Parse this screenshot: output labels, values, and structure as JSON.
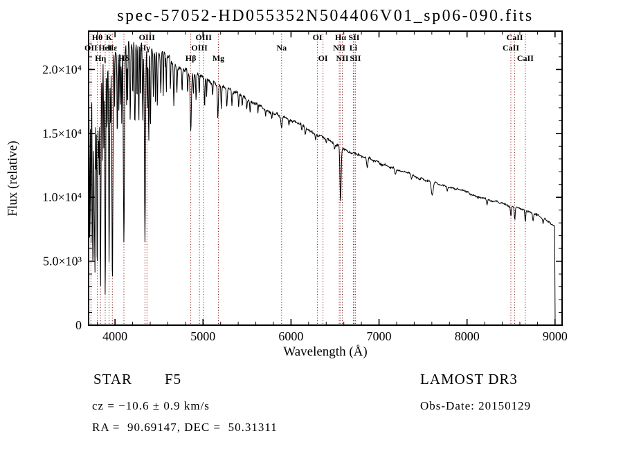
{
  "title": "spec-57052-HD055352N504406V01_sp06-090.fits",
  "axes": {
    "xlabel": "Wavelength (Å)",
    "ylabel": "Flux (relative)",
    "xticks": [
      {
        "value": 4000,
        "label": "4000"
      },
      {
        "value": 5000,
        "label": "5000"
      },
      {
        "value": 6000,
        "label": "6000"
      },
      {
        "value": 7000,
        "label": "7000"
      },
      {
        "value": 8000,
        "label": "8000"
      },
      {
        "value": 9000,
        "label": "9000"
      }
    ],
    "yticks": [
      {
        "value": 0,
        "label": "0"
      },
      {
        "value": 5000,
        "label": "5.0×10³"
      },
      {
        "value": 10000,
        "label": "1.0×10⁴"
      },
      {
        "value": 15000,
        "label": "1.5×10⁴"
      },
      {
        "value": 20000,
        "label": "2.0×10⁴"
      }
    ],
    "x_minor_step": 200,
    "y_minor_step": 1000
  },
  "chart_data": {
    "type": "line",
    "title": "spec-57052-HD055352N504406V01_sp06-090.fits",
    "xlabel": "Wavelength (Å)",
    "ylabel": "Flux (relative)",
    "xlim": [
      3700,
      9080
    ],
    "ylim": [
      0,
      23000
    ],
    "grid": false,
    "legend": "none",
    "marker_color": "#8b1a1a",
    "label_color": "#1a1212",
    "series": [
      {
        "name": "observed-spectrum",
        "color": "#000000",
        "continuum_points": [
          [
            3700,
            19500
          ],
          [
            3760,
            20200
          ],
          [
            3820,
            20500
          ],
          [
            3880,
            20800
          ],
          [
            3940,
            21000
          ],
          [
            4000,
            21300
          ],
          [
            4080,
            21600
          ],
          [
            4160,
            21900
          ],
          [
            4240,
            22000
          ],
          [
            4320,
            21800
          ],
          [
            4400,
            21500
          ],
          [
            4500,
            21200
          ],
          [
            4600,
            20900
          ],
          [
            4700,
            20400
          ],
          [
            4800,
            20000
          ],
          [
            4900,
            19700
          ],
          [
            5000,
            19400
          ],
          [
            5100,
            19000
          ],
          [
            5200,
            18700
          ],
          [
            5300,
            18400
          ],
          [
            5400,
            18100
          ],
          [
            5500,
            17700
          ],
          [
            5600,
            17300
          ],
          [
            5700,
            16900
          ],
          [
            5800,
            16600
          ],
          [
            5900,
            16300
          ],
          [
            6000,
            16000
          ],
          [
            6100,
            15700
          ],
          [
            6200,
            15300
          ],
          [
            6300,
            14900
          ],
          [
            6400,
            14600
          ],
          [
            6500,
            14200
          ],
          [
            6600,
            13800
          ],
          [
            6700,
            13500
          ],
          [
            6800,
            13200
          ],
          [
            6900,
            13000
          ],
          [
            7000,
            12700
          ],
          [
            7100,
            12500
          ],
          [
            7200,
            12200
          ],
          [
            7300,
            12000
          ],
          [
            7400,
            11700
          ],
          [
            7500,
            11400
          ],
          [
            7600,
            11200
          ],
          [
            7700,
            11000
          ],
          [
            7800,
            10800
          ],
          [
            7900,
            10600
          ],
          [
            8000,
            10400
          ],
          [
            8100,
            10100
          ],
          [
            8200,
            9900
          ],
          [
            8300,
            9700
          ],
          [
            8400,
            9500
          ],
          [
            8500,
            9300
          ],
          [
            8600,
            9100
          ],
          [
            8700,
            8900
          ],
          [
            8800,
            8600
          ],
          [
            8900,
            8200
          ],
          [
            9000,
            7700
          ]
        ],
        "absorption_features": [
          [
            3712,
            13000,
            4
          ],
          [
            3727,
            14000,
            4
          ],
          [
            3742,
            10000,
            3
          ],
          [
            3750,
            16000,
            4
          ],
          [
            3762,
            9000,
            3
          ],
          [
            3771,
            16500,
            4
          ],
          [
            3784,
            8000,
            3
          ],
          [
            3798,
            17000,
            5
          ],
          [
            3812,
            7000,
            3
          ],
          [
            3820,
            9000,
            3
          ],
          [
            3835,
            17500,
            5
          ],
          [
            3856,
            8000,
            3
          ],
          [
            3872,
            7000,
            3
          ],
          [
            3889,
            18000,
            5
          ],
          [
            3910,
            6000,
            3
          ],
          [
            3933,
            16000,
            5
          ],
          [
            3950,
            6000,
            3
          ],
          [
            3970,
            18500,
            6
          ],
          [
            3995,
            5000,
            3
          ],
          [
            4026,
            7000,
            4
          ],
          [
            4045,
            5500,
            3
          ],
          [
            4063,
            4500,
            3
          ],
          [
            4077,
            6000,
            3
          ],
          [
            4101,
            15500,
            6
          ],
          [
            4132,
            5000,
            3
          ],
          [
            4144,
            4500,
            3
          ],
          [
            4173,
            6000,
            4
          ],
          [
            4202,
            4500,
            3
          ],
          [
            4226,
            7000,
            4
          ],
          [
            4250,
            4500,
            3
          ],
          [
            4271,
            6000,
            4
          ],
          [
            4290,
            5000,
            3
          ],
          [
            4315,
            6000,
            4
          ],
          [
            4340,
            15000,
            6
          ],
          [
            4367,
            5000,
            3
          ],
          [
            4383,
            7500,
            4
          ],
          [
            4404,
            6000,
            4
          ],
          [
            4435,
            3500,
            3
          ],
          [
            4459,
            4000,
            3
          ],
          [
            4481,
            4500,
            4
          ],
          [
            4520,
            3000,
            4
          ],
          [
            4549,
            3500,
            3
          ],
          [
            4583,
            3000,
            3
          ],
          [
            4629,
            2500,
            3
          ],
          [
            4668,
            3200,
            5
          ],
          [
            4703,
            2200,
            4
          ],
          [
            4762,
            1800,
            4
          ],
          [
            4825,
            1800,
            4
          ],
          [
            4861,
            4600,
            7
          ],
          [
            4891,
            1500,
            3
          ],
          [
            4921,
            2000,
            4
          ],
          [
            4957,
            1600,
            4
          ],
          [
            5018,
            2200,
            4
          ],
          [
            5041,
            1400,
            3
          ],
          [
            5110,
            1200,
            4
          ],
          [
            5169,
            2400,
            5
          ],
          [
            5208,
            1800,
            4
          ],
          [
            5270,
            1600,
            5
          ],
          [
            5328,
            1100,
            4
          ],
          [
            5405,
            1000,
            4
          ],
          [
            5446,
            900,
            4
          ],
          [
            5497,
            700,
            4
          ],
          [
            5535,
            800,
            4
          ],
          [
            5624,
            600,
            4
          ],
          [
            5711,
            500,
            4
          ],
          [
            5782,
            500,
            4
          ],
          [
            5893,
            800,
            7
          ],
          [
            5976,
            400,
            4
          ],
          [
            6122,
            550,
            4
          ],
          [
            6162,
            500,
            4
          ],
          [
            6280,
            450,
            5
          ],
          [
            6400,
            350,
            4
          ],
          [
            6495,
            400,
            4
          ],
          [
            6563,
            4300,
            7
          ],
          [
            6867,
            800,
            7
          ],
          [
            7186,
            450,
            7
          ],
          [
            7370,
            300,
            6
          ],
          [
            7605,
            1000,
            11
          ],
          [
            7775,
            350,
            6
          ],
          [
            8227,
            450,
            6
          ],
          [
            8498,
            750,
            5
          ],
          [
            8542,
            1000,
            5
          ],
          [
            8662,
            900,
            5
          ],
          [
            8750,
            550,
            5
          ],
          [
            8865,
            450,
            5
          ]
        ],
        "noise_profile": [
          [
            3700,
            1300
          ],
          [
            3850,
            1100
          ],
          [
            4000,
            750
          ],
          [
            4300,
            450
          ],
          [
            4700,
            330
          ],
          [
            5400,
            220
          ],
          [
            6500,
            150
          ],
          [
            7600,
            130
          ],
          [
            9080,
            115
          ]
        ],
        "cutoff": {
          "wavelength": 8995,
          "drop_to": 0
        }
      }
    ],
    "spectral_line_markers": [
      {
        "label": "Hθ",
        "wavelength": 3798,
        "row": 1
      },
      {
        "label": "K",
        "wavelength": 3933,
        "row": 1
      },
      {
        "label": "OII",
        "wavelength": 3727,
        "row": 2
      },
      {
        "label": "HeI",
        "wavelength": 3889,
        "row": 2
      },
      {
        "label": "Hε",
        "wavelength": 3970,
        "row": 2
      },
      {
        "label": "Hη",
        "wavelength": 3835,
        "row": 3
      },
      {
        "label": "Hδ",
        "wavelength": 4101,
        "row": 3
      },
      {
        "label": "OIII",
        "wavelength": 4363,
        "row": 1
      },
      {
        "label": "Hγ",
        "wavelength": 4340,
        "row": 2
      },
      {
        "label": "Hβ",
        "wavelength": 4861,
        "row": 3
      },
      {
        "label": "OIII",
        "wavelength": 5007,
        "row": 1
      },
      {
        "label": "OIII",
        "wavelength": 4959,
        "row": 2
      },
      {
        "label": "Mg",
        "wavelength": 5175,
        "row": 3
      },
      {
        "label": "Na",
        "wavelength": 5893,
        "row": 2
      },
      {
        "label": "OI",
        "wavelength": 6300,
        "row": 1
      },
      {
        "label": "OI",
        "wavelength": 6363,
        "row": 3
      },
      {
        "label": "Hα",
        "wavelength": 6563,
        "row": 1
      },
      {
        "label": "NII",
        "wavelength": 6548,
        "row": 2
      },
      {
        "label": "NII",
        "wavelength": 6583,
        "row": 3
      },
      {
        "label": "SII",
        "wavelength": 6716,
        "row": 1
      },
      {
        "label": "Li",
        "wavelength": 6708,
        "row": 2
      },
      {
        "label": "SII",
        "wavelength": 6731,
        "row": 3
      },
      {
        "label": "CaII",
        "wavelength": 8542,
        "row": 1
      },
      {
        "label": "CaII",
        "wavelength": 8498,
        "row": 2
      },
      {
        "label": "CaII",
        "wavelength": 8662,
        "row": 3
      }
    ]
  },
  "footer": {
    "class_type": "STAR",
    "subclass": "F5",
    "survey": "LAMOST DR3",
    "velocity": "cz = −10.6 ± 0.9 km/s",
    "obs_date": "Obs-Date: 20150129",
    "coordinates": "RA =  90.69147, DEC =  50.31311"
  }
}
